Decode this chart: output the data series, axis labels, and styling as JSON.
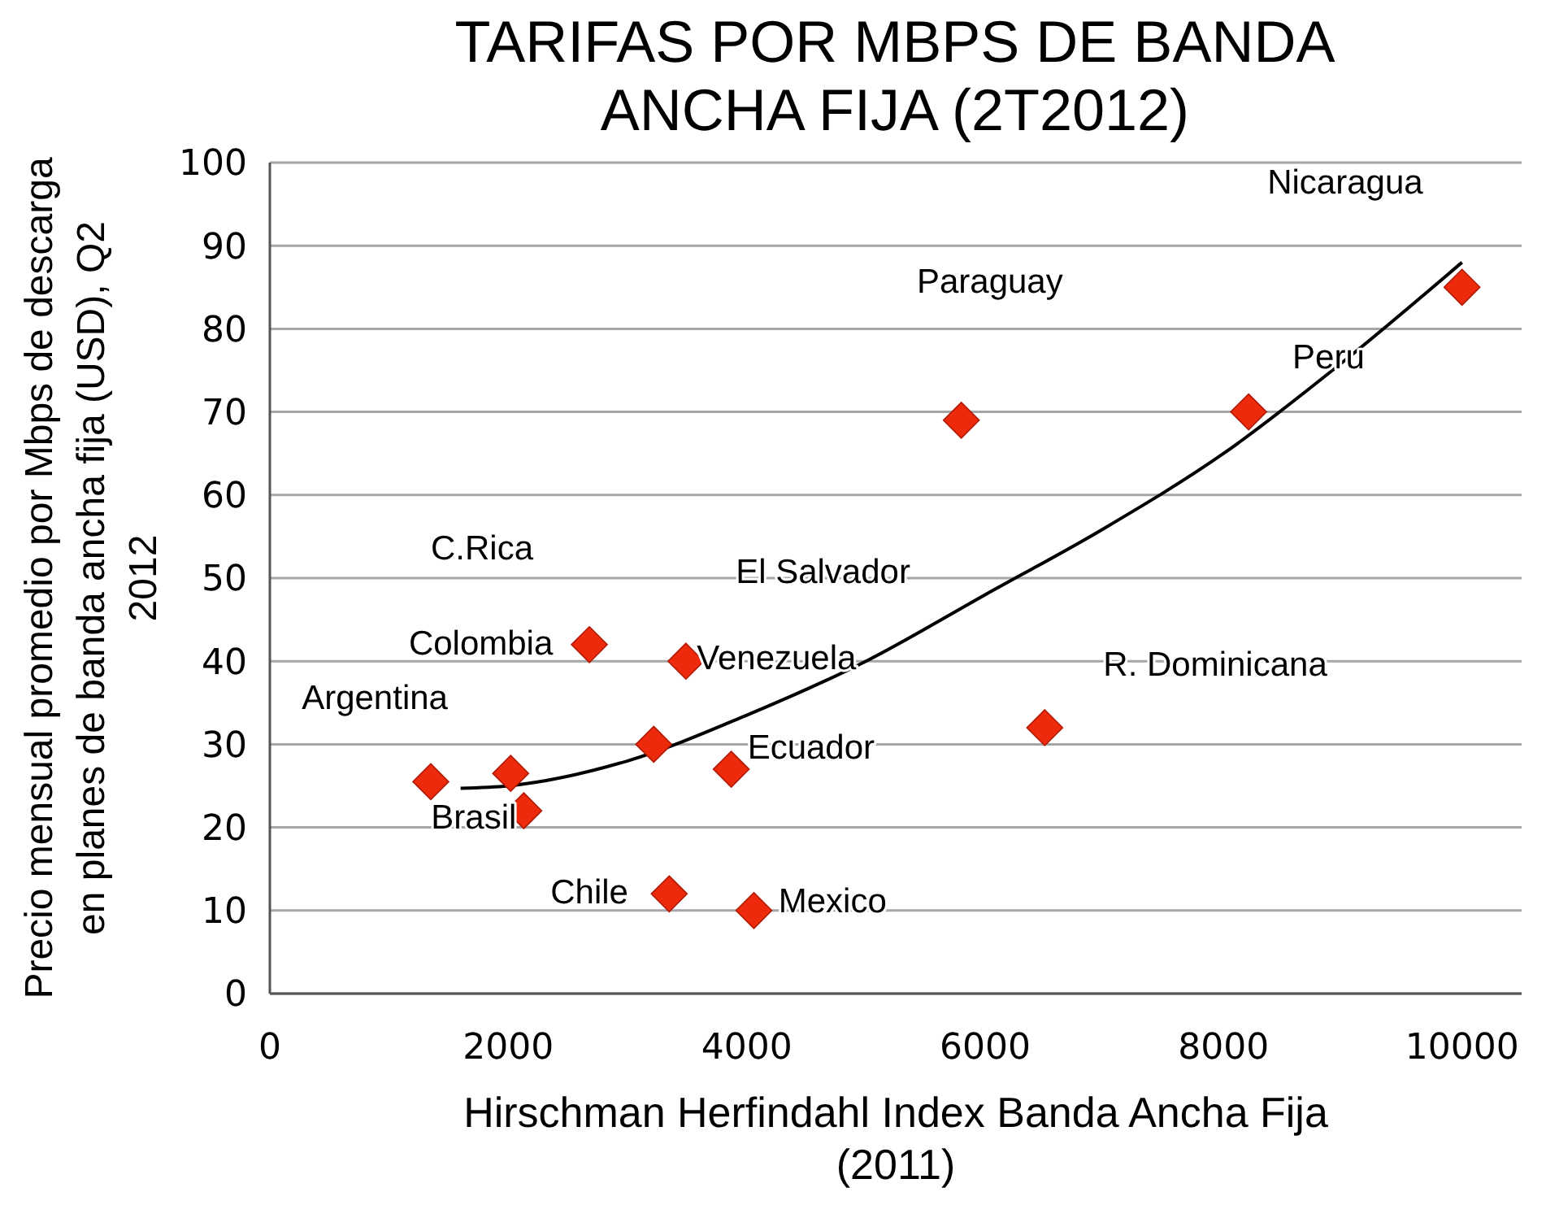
{
  "chart_data": {
    "type": "scatter",
    "title": "TARIFAS POR MBPS DE BANDA ANCHA FIJA (2T2012)",
    "xlabel": "Hirschman Herfindahl Index Banda Ancha Fija (2011)",
    "ylabel": "Precio mensual promedio por Mbps de descarga en planes de banda ancha fija (USD),  Q2 2012",
    "xlim": [
      0,
      10500
    ],
    "xticks": [
      0,
      2000,
      4000,
      6000,
      8000,
      10000
    ],
    "ylim": [
      0,
      100
    ],
    "yticks": [
      0,
      10,
      20,
      30,
      40,
      50,
      60,
      70,
      80,
      90,
      100
    ],
    "grid": "y",
    "marker": "diamond",
    "series": [
      {
        "color": "#ee2a0c",
        "x": [
          1350,
          2020,
          2130,
          2680,
          3490,
          3220,
          3870,
          3350,
          4060,
          5800,
          8210,
          6500,
          10000
        ],
        "values": [
          25.5,
          26.5,
          22,
          42,
          40,
          30,
          27,
          12,
          10,
          69,
          70,
          32,
          85
        ]
      },
      {
        "type": "line",
        "color": "#000000",
        "marker": "none",
        "x": [
          1600,
          2000,
          3000,
          4000,
          5000,
          6000,
          7000,
          8000,
          9000,
          10000
        ],
        "values": [
          24.7,
          25,
          28,
          33.5,
          40,
          48,
          56,
          65,
          76,
          88
        ]
      }
    ],
    "annotations": [
      "Nicaragua",
      "Paraguay",
      "Peru",
      "C.Rica",
      "El Salvador",
      "Colombia",
      "Venezuela",
      "R. Dominicana",
      "Argentina",
      "Ecuador",
      "Brasil",
      "Chile",
      "Mexico"
    ]
  }
}
